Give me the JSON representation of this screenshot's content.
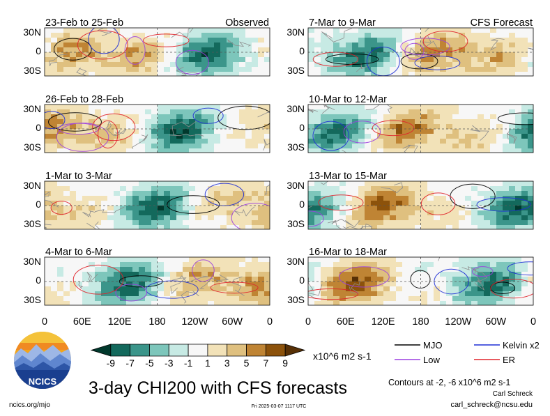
{
  "figure": {
    "title": "3-day CHI200 with CFS forecasts",
    "contour_note": "Contours at -2, -6 x10^6 m2 s-1",
    "author_name": "Carl Schreck",
    "author_email": "carl_schreck@ncsu.edu",
    "site_url": "ncics.org/mjo",
    "timestamp": "Fri 2025-03-07 1117 UTC",
    "logo_text": "NCICS"
  },
  "chart_data": {
    "type": "heatmap",
    "variable": "CHI200",
    "units": "x10^6 m2 s-1",
    "colorbar": {
      "ticks": [
        "-9",
        "-7",
        "-5",
        "-3",
        "-1",
        "1",
        "3",
        "5",
        "7",
        "9"
      ],
      "colors": [
        "#01392d",
        "#13695c",
        "#3b958a",
        "#7dc6bb",
        "#c7eae4",
        "#f7f7f7",
        "#f2e2b8",
        "#dfc07f",
        "#bf8434",
        "#8c520b",
        "#573006"
      ],
      "unit_label": "x10^6 m2 s-1"
    },
    "lat_ticks": [
      "30N",
      "0",
      "30S"
    ],
    "lon_ticks": [
      "0",
      "60E",
      "120E",
      "180",
      "120W",
      "60W",
      "0"
    ],
    "columns": [
      {
        "header": "Observed",
        "header_align": "right"
      },
      {
        "header": "CFS Forecast",
        "header_align": "right"
      }
    ],
    "panels": [
      {
        "label": "23-Feb to 25-Feb",
        "col": 0,
        "row": 0,
        "source": "Observed"
      },
      {
        "label": "26-Feb to 28-Feb",
        "col": 0,
        "row": 1,
        "source": "Observed"
      },
      {
        "label": "1-Mar to 3-Mar",
        "col": 0,
        "row": 2,
        "source": "Observed"
      },
      {
        "label": "4-Mar to 6-Mar",
        "col": 0,
        "row": 3,
        "source": "Observed"
      },
      {
        "label": "7-Mar to 9-Mar",
        "col": 1,
        "row": 0,
        "source": "CFS Forecast"
      },
      {
        "label": "10-Mar to 12-Mar",
        "col": 1,
        "row": 1,
        "source": "CFS Forecast"
      },
      {
        "label": "13-Mar to 15-Mar",
        "col": 1,
        "row": 2,
        "source": "CFS Forecast"
      },
      {
        "label": "16-Mar to 18-Mar",
        "col": 1,
        "row": 3,
        "source": "CFS Forecast"
      }
    ],
    "legend": [
      {
        "name": "MJO",
        "color": "#000000"
      },
      {
        "name": "Kelvin x2",
        "color": "#1f2fd6"
      },
      {
        "name": "Low",
        "color": "#9b3fe0"
      },
      {
        "name": "ER",
        "color": "#e0242b"
      }
    ],
    "contours": [
      -2,
      -6
    ]
  }
}
